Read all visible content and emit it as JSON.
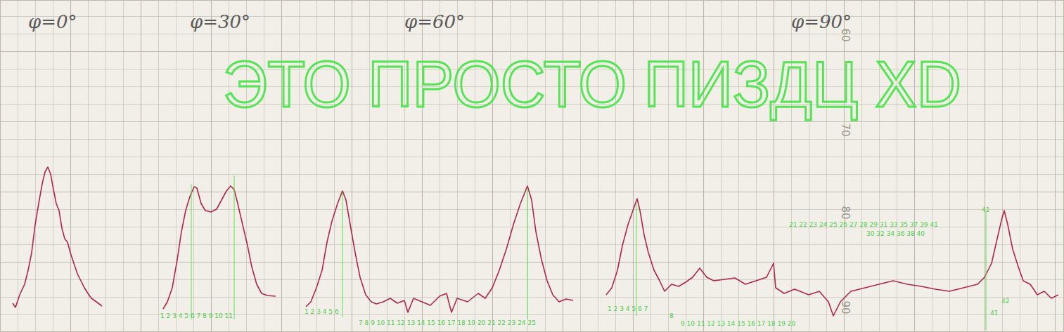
{
  "chart_data": {
    "type": "line",
    "title": "ЭТО ПРОСТО ПИЗДЦ XD",
    "xlim": [
      0,
      1513
    ],
    "ylim": [
      0,
      473
    ],
    "xticks": [
      0,
      25,
      50,
      75,
      100,
      125,
      150,
      175,
      200,
      225,
      250,
      275,
      300,
      325,
      350,
      375,
      400,
      425,
      450,
      475,
      500,
      525,
      550,
      575,
      600,
      625,
      650,
      675,
      700,
      725,
      750,
      775,
      800,
      825,
      850,
      875,
      900,
      925,
      950,
      975,
      1000,
      1025,
      1050,
      1075,
      1100,
      1125,
      1150,
      1175,
      1200,
      1225,
      1250,
      1275,
      1300,
      1325,
      1350,
      1375,
      1400,
      1425,
      1450,
      1475,
      1500
    ],
    "yticks": [
      0,
      25,
      50,
      75,
      100,
      125,
      150,
      175,
      200,
      225,
      250,
      275,
      300,
      325,
      350,
      375,
      400,
      425,
      450
    ],
    "grid": true,
    "tick_labels": false,
    "series": [
      {
        "color": "#b02848",
        "x": [
          18,
          22,
          28,
          35,
          40,
          45,
          50,
          55,
          60,
          64,
          68,
          72,
          76,
          80,
          84,
          88,
          92,
          96,
          100,
          105,
          110,
          115,
          120,
          125,
          130,
          137,
          145
        ],
        "values": [
          41,
          35,
          53,
          68,
          88,
          113,
          153,
          183,
          211,
          228,
          235,
          225,
          203,
          183,
          173,
          148,
          133,
          128,
          113,
          98,
          83,
          73,
          63,
          55,
          48,
          43,
          37
        ]
      },
      {
        "color": "#b02848",
        "x": [
          232,
          238,
          245,
          252,
          258,
          264,
          270,
          276,
          280,
          286,
          292,
          300,
          308,
          315,
          322,
          328,
          333,
          338,
          345,
          352,
          358,
          365,
          372,
          380,
          392
        ],
        "values": [
          33,
          43,
          63,
          103,
          143,
          173,
          193,
          207,
          205,
          183,
          173,
          171,
          175,
          188,
          201,
          208,
          203,
          183,
          153,
          123,
          93,
          68,
          55,
          52,
          51
        ]
      },
      {
        "color": "#b02848",
        "x": [
          435,
          442,
          450,
          458,
          465,
          472,
          480,
          487,
          492,
          498,
          505,
          512,
          520,
          528,
          535,
          545,
          555,
          565,
          575,
          580,
          588,
          600,
          612,
          625,
          635,
          642,
          650,
          665,
          680,
          690,
          700,
          710,
          720,
          730,
          740,
          750,
          756,
          762,
          770,
          778,
          786,
          795,
          805,
          815
        ],
        "values": [
          36,
          43,
          63,
          88,
          128,
          158,
          183,
          201,
          188,
          153,
          113,
          78,
          53,
          43,
          40,
          43,
          48,
          41,
          45,
          28,
          48,
          43,
          38,
          51,
          55,
          28,
          48,
          43,
          55,
          48,
          63,
          88,
          118,
          153,
          183,
          208,
          188,
          143,
          103,
          73,
          53,
          43,
          47,
          45
        ]
      },
      {
        "color": "#b02848",
        "x": [
          862,
          870,
          878,
          885,
          893,
          900,
          906,
          910,
          916,
          922,
          930,
          938,
          945,
          955,
          965,
          975,
          985,
          995,
          1005,
          1015,
          1030,
          1045,
          1060,
          1075,
          1090,
          1100,
          1103,
          1115,
          1130,
          1150,
          1165,
          1178,
          1185,
          1195,
          1210,
          1230,
          1250,
          1270,
          1290,
          1310,
          1330,
          1350,
          1370,
          1390,
          1400,
          1410,
          1418,
          1425,
          1428,
          1433,
          1440,
          1448,
          1455,
          1465,
          1475,
          1485,
          1495,
          1505
        ],
        "values": [
          53,
          63,
          88,
          123,
          153,
          173,
          190,
          173,
          138,
          113,
          88,
          73,
          58,
          68,
          65,
          71,
          78,
          91,
          78,
          73,
          75,
          77,
          68,
          73,
          78,
          98,
          63,
          55,
          61,
          53,
          58,
          43,
          23,
          43,
          58,
          63,
          68,
          73,
          68,
          65,
          61,
          58,
          63,
          68,
          78,
          98,
          133,
          163,
          173,
          153,
          118,
          93,
          73,
          68,
          53,
          58,
          48,
          53
        ]
      }
    ],
    "labels": [
      {
        "text": "φ=0°",
        "x": 40,
        "y": 433
      },
      {
        "text": "φ=30°",
        "x": 270,
        "y": 433
      },
      {
        "text": "φ=60°",
        "x": 575,
        "y": 433
      },
      {
        "text": "φ=90°",
        "x": 1125,
        "y": 433
      }
    ],
    "annotations": [
      {
        "text": "1 2 3 4 5 6 7 8 9 10 11",
        "x": 228,
        "y": 20
      },
      {
        "text": "1 2 3 4 5 6",
        "x": 433,
        "y": 26
      },
      {
        "text": "7 8 9 10 11 12 13 14 15 16 17 18 19 20 21 22 23 24 25",
        "x": 510,
        "y": 10
      },
      {
        "text": "1 2 3 4 5 6 7",
        "x": 864,
        "y": 30
      },
      {
        "text": "8",
        "x": 952,
        "y": 20
      },
      {
        "text": "9 10 11 12 13 14 15 16 17 18 19 20",
        "x": 968,
        "y": 9
      },
      {
        "text": "21 22 23 24 25 26 27 28 29 31 33 35 37 39 41",
        "x": 1122,
        "y": 150
      },
      {
        "text": "30 32 34 36 38 40",
        "x": 1232,
        "y": 137
      },
      {
        "text": "41",
        "x": 1396,
        "y": 171
      },
      {
        "text": "41",
        "x": 1408,
        "y": 24
      },
      {
        "text": "42",
        "x": 1424,
        "y": 41
      }
    ],
    "guide_lines": [
      {
        "x": 272,
        "y0": 18,
        "y1": 211
      },
      {
        "x": 333,
        "y0": 18,
        "y1": 223
      },
      {
        "x": 487,
        "y0": 21,
        "y1": 198
      },
      {
        "x": 750,
        "y0": 18,
        "y1": 205
      },
      {
        "x": 905,
        "y0": 23,
        "y1": 183
      },
      {
        "x": 1402,
        "y0": 3,
        "y1": 173
      }
    ],
    "scale_marks": [
      {
        "value": 60,
        "x": 1197,
        "y": 423
      },
      {
        "value": 70,
        "x": 1197,
        "y": 288
      },
      {
        "value": 80,
        "x": 1197,
        "y": 170
      },
      {
        "value": 90,
        "x": 1197,
        "y": 35
      }
    ]
  }
}
